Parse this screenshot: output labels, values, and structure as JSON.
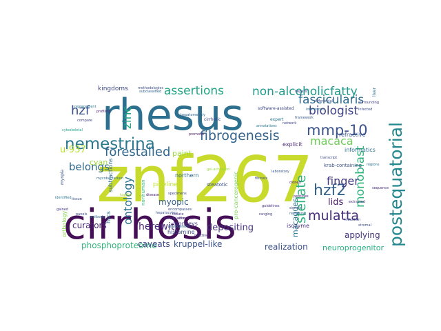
{
  "cloud": {
    "words": [
      {
        "text": "znf267",
        "color": "#c8da2b"
      },
      {
        "text": "rhesus",
        "color": "#2c6f8e"
      },
      {
        "text": "cirrhosis",
        "color": "#440f57"
      },
      {
        "text": "postequatorial",
        "color": "#24868e"
      },
      {
        "text": "nemestrina",
        "color": "#2a788e"
      },
      {
        "text": "mmp-10",
        "color": "#3b528b"
      },
      {
        "text": "non-alcoholicfatty",
        "color": "#1f9a8a"
      },
      {
        "text": "assertions",
        "color": "#21a585"
      },
      {
        "text": "fibrogenesis",
        "color": "#33638d"
      },
      {
        "text": "biologist",
        "color": "#404688"
      },
      {
        "text": "fascicularis",
        "color": "#2f6b8e"
      },
      {
        "text": "forestalled",
        "color": "#31688e"
      },
      {
        "text": "hzf2",
        "color": "#33638d"
      },
      {
        "text": "mulatta",
        "color": "#472d7b"
      },
      {
        "text": "stellate",
        "color": "#2db27d"
      },
      {
        "text": "monoblast",
        "color": "#2fb47c"
      },
      {
        "text": "macaca",
        "color": "#6ece58"
      },
      {
        "text": "finger",
        "color": "#443a83"
      },
      {
        "text": "ontology",
        "color": "#2c728e"
      },
      {
        "text": "zinc",
        "color": "#22a884"
      },
      {
        "text": "hzf",
        "color": "#3b528b"
      },
      {
        "text": "belongs",
        "color": "#31688e"
      },
      {
        "text": "herewith",
        "color": "#482878"
      },
      {
        "text": "depositing",
        "color": "#46327e"
      },
      {
        "text": "lids",
        "color": "#481a6c"
      },
      {
        "text": "myopic",
        "color": "#355f8d"
      },
      {
        "text": "curators",
        "color": "#482475"
      },
      {
        "text": "phosphoproteome",
        "color": "#31b57b"
      },
      {
        "text": "caveats",
        "color": "#3e4989"
      },
      {
        "text": "kruppel-like",
        "color": "#3a538b"
      },
      {
        "text": "realization",
        "color": "#3b528b"
      },
      {
        "text": "neuroprogenitor",
        "color": "#29af7f"
      },
      {
        "text": "applying",
        "color": "#46337f"
      },
      {
        "text": "macaques",
        "color": "#2c728e"
      },
      {
        "text": "u-937",
        "color": "#b5de2b"
      },
      {
        "text": "cyan",
        "color": "#a2da37"
      },
      {
        "text": "paint",
        "color": "#9bd93c"
      },
      {
        "text": "kingdoms",
        "color": "#3f4788"
      },
      {
        "text": "explicit",
        "color": "#482677"
      },
      {
        "text": "informatics",
        "color": "#2d708e"
      },
      {
        "text": "krab-containing",
        "color": "#3b528b"
      },
      {
        "text": "histamine",
        "color": "#3e4a89"
      },
      {
        "text": "subtractions",
        "color": "#2f6c8e"
      },
      {
        "text": "monkeys",
        "color": "#453781"
      },
      {
        "text": "northern",
        "color": "#31678e"
      },
      {
        "text": "steatotic",
        "color": "#3d4e8a"
      },
      {
        "text": "refractive",
        "color": "#3a548c"
      },
      {
        "text": "isozyme",
        "color": "#46337e"
      },
      {
        "text": "hscs",
        "color": "#2e6e8e"
      },
      {
        "text": "pro-cancerogenic",
        "color": "#7ad151"
      },
      {
        "text": "orthology",
        "color": "#86d549"
      },
      {
        "text": "nonhuman",
        "color": "#35b779"
      },
      {
        "text": "specimens",
        "color": "#3f4889"
      },
      {
        "text": "guidelines",
        "color": "#46327e"
      },
      {
        "text": "expert",
        "color": "#2a768e"
      },
      {
        "text": "cirrhotic",
        "color": "#3e4a89"
      },
      {
        "text": "annotations",
        "color": "#2b748e"
      },
      {
        "text": "methodologies",
        "color": "#3b518b"
      },
      {
        "text": "hepatic",
        "color": "#404588"
      },
      {
        "text": "profiling",
        "color": "#481f70"
      },
      {
        "text": "phylogenetic",
        "color": "#2e6d8e"
      },
      {
        "text": "reviewing",
        "color": "#355e8d"
      },
      {
        "text": "hepatocytes",
        "color": "#3a548c"
      },
      {
        "text": "subclassified",
        "color": "#33638d"
      },
      {
        "text": "peptides",
        "color": "#482979"
      },
      {
        "text": "gained",
        "color": "#453882"
      },
      {
        "text": "regions",
        "color": "#2d708e"
      },
      {
        "text": "fibrosis",
        "color": "#3c4f8a"
      },
      {
        "text": "compare",
        "color": "#414287"
      },
      {
        "text": "software-assisted",
        "color": "#3e4a89"
      },
      {
        "text": "disease",
        "color": "#482173"
      },
      {
        "text": "inferences",
        "color": "#2c718e"
      },
      {
        "text": "differential",
        "color": "#3d4d8a"
      },
      {
        "text": "surrounding",
        "color": "#423f85"
      },
      {
        "text": "infected",
        "color": "#3e4c8a"
      },
      {
        "text": "sequence",
        "color": "#472c7a"
      },
      {
        "text": "framework",
        "color": "#38588c"
      },
      {
        "text": "promoter",
        "color": "#481467"
      },
      {
        "text": "transcript",
        "color": "#3e4989"
      },
      {
        "text": "replacement",
        "color": "#2a778e"
      },
      {
        "text": "cytoskeletal",
        "color": "#1fa088"
      },
      {
        "text": "hepatomegaly",
        "color": "#32658e"
      },
      {
        "text": "network",
        "color": "#3f4788"
      },
      {
        "text": "signals",
        "color": "#3d4e8a"
      },
      {
        "text": "ranging",
        "color": "#433e85"
      },
      {
        "text": "reactive",
        "color": "#472f7d"
      },
      {
        "text": "encompasses",
        "color": "#3c508b"
      },
      {
        "text": "cloned",
        "color": "#471063"
      },
      {
        "text": "stromal",
        "color": "#3d4d8a"
      },
      {
        "text": "identified",
        "color": "#2c738e"
      },
      {
        "text": "laboratory",
        "color": "#39568c"
      },
      {
        "text": "mycobacterium",
        "color": "#2e6f8e"
      },
      {
        "text": "induction",
        "color": "#3f4889"
      },
      {
        "text": "coregulation",
        "color": "#443983"
      },
      {
        "text": "isolate",
        "color": "#453581"
      },
      {
        "text": "attempts",
        "color": "#481b6d"
      },
      {
        "text": "extracted",
        "color": "#472f7d"
      },
      {
        "text": "panels",
        "color": "#3e4a89"
      },
      {
        "text": "pipeline",
        "color": "#bddf26"
      },
      {
        "text": "kupffer",
        "color": "#a8db34"
      },
      {
        "text": "liver",
        "color": "#2e6e8e"
      },
      {
        "text": "myopia",
        "color": "#3b528b"
      },
      {
        "text": "gel-activated",
        "color": "#98d83e"
      },
      {
        "text": "tissue",
        "color": "#3a548c"
      },
      {
        "text": "antibody",
        "color": "#2f6b8e"
      }
    ]
  }
}
